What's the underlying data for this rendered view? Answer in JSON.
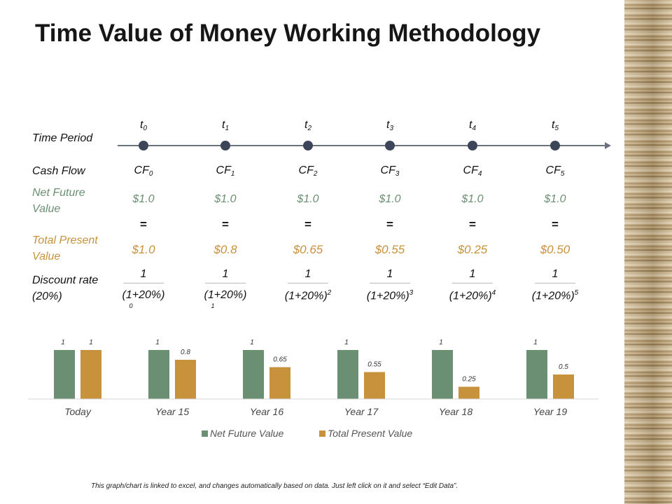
{
  "title": "Time Value of Money Working Methodology",
  "labels": {
    "time_period": "Time Period",
    "cash_flow": "Cash Flow",
    "net_future_value": "Net Future Value",
    "total_present_value": "Total Present Value",
    "discount_rate": "Discount rate (20%)"
  },
  "columns": [
    {
      "t": "t",
      "t_sub": "0",
      "cf": "CF",
      "cf_sub": "0",
      "nfv": "$1.0",
      "eq": "=",
      "tpv": "$1.0",
      "numerator": "1",
      "denominator": "(1+20%)",
      "denominator_exp": "0",
      "exp_below": true
    },
    {
      "t": "t",
      "t_sub": "1",
      "cf": "CF",
      "cf_sub": "1",
      "nfv": "$1.0",
      "eq": "=",
      "tpv": "$0.8",
      "numerator": "1",
      "denominator": "(1+20%)",
      "denominator_exp": "1",
      "exp_below": true
    },
    {
      "t": "t",
      "t_sub": "2",
      "cf": "CF",
      "cf_sub": "2",
      "nfv": "$1.0",
      "eq": "=",
      "tpv": "$0.65",
      "numerator": "1",
      "denominator": "(1+20%)",
      "denominator_exp": "2",
      "exp_below": false
    },
    {
      "t": "t",
      "t_sub": "3",
      "cf": "CF",
      "cf_sub": "3",
      "nfv": "$1.0",
      "eq": "=",
      "tpv": "$0.55",
      "numerator": "1",
      "denominator": "(1+20%)",
      "denominator_exp": "3",
      "exp_below": false
    },
    {
      "t": "t",
      "t_sub": "4",
      "cf": "CF",
      "cf_sub": "4",
      "nfv": "$1.0",
      "eq": "=",
      "tpv": "$0.25",
      "numerator": "1",
      "denominator": "(1+20%)",
      "denominator_exp": "4",
      "exp_below": false
    },
    {
      "t": "t",
      "t_sub": "5",
      "cf": "CF",
      "cf_sub": "5",
      "nfv": "$1.0",
      "eq": "=",
      "tpv": "$0.50",
      "numerator": "1",
      "denominator": "(1+20%)",
      "denominator_exp": "5",
      "exp_below": false
    }
  ],
  "colors": {
    "net_future_value": "#6b8f72",
    "total_present_value": "#c8923c",
    "timeline": "#3d4658"
  },
  "chart_data": {
    "type": "bar",
    "categories": [
      "Today",
      "Year 15",
      "Year 16",
      "Year 17",
      "Year 18",
      "Year 19"
    ],
    "series": [
      {
        "name": "Net Future Value",
        "values": [
          1,
          1,
          1,
          1,
          1,
          1
        ],
        "labels": [
          "1",
          "1",
          "1",
          "1",
          "1",
          "1"
        ],
        "color": "#6b8f72"
      },
      {
        "name": "Total Present Value",
        "values": [
          1,
          0.8,
          0.65,
          0.55,
          0.25,
          0.5
        ],
        "labels": [
          "1",
          "0.8",
          "0.65",
          "0.55",
          "0.25",
          "0.5"
        ],
        "color": "#c8923c"
      }
    ],
    "ylim": [
      0,
      1.2
    ],
    "grid": false,
    "legend": "bottom-center"
  },
  "footnote": "This graph/chart is linked to excel, and changes automatically based on data. Just left click on it and select “Edit Data”."
}
